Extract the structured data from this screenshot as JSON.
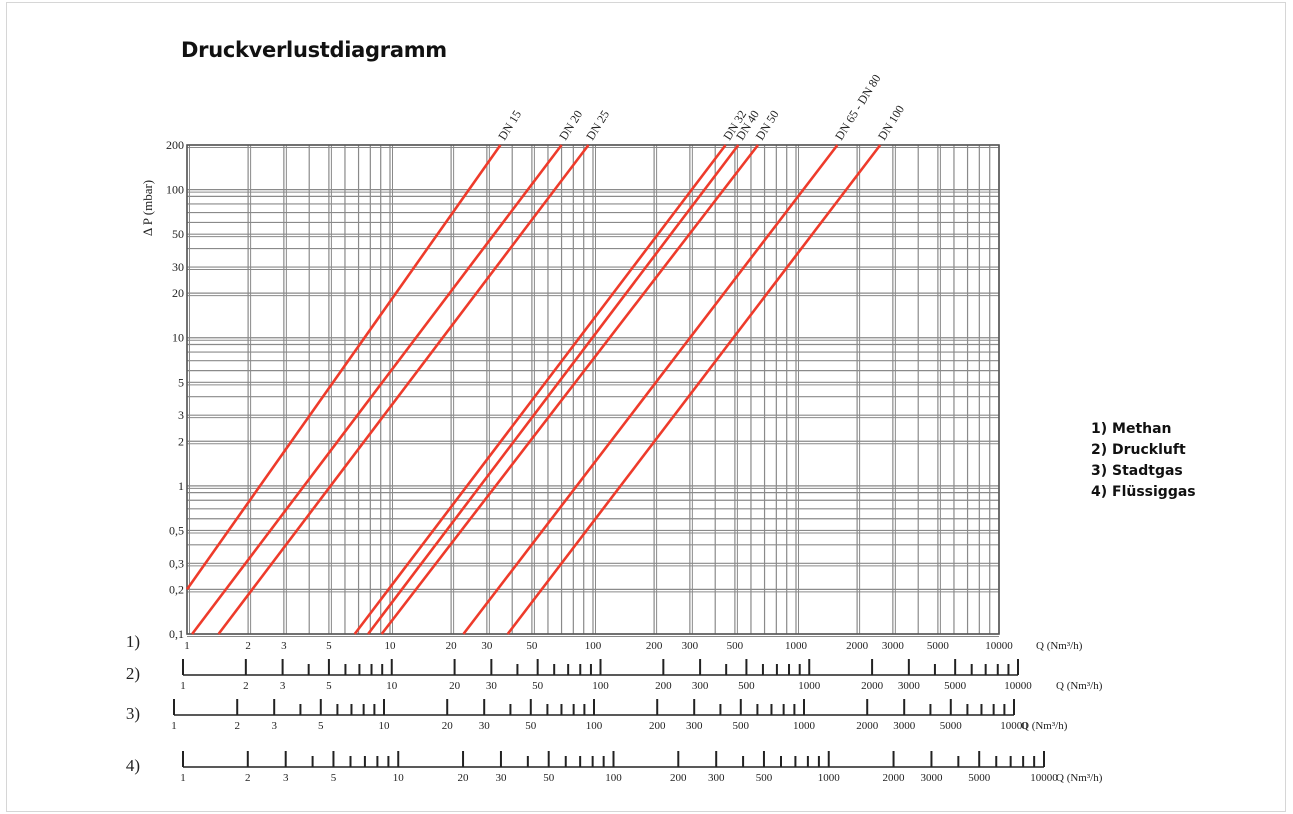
{
  "title": "Druckverlustdiagramm",
  "legend": {
    "items": [
      "1) Methan",
      "2) Druckluft",
      "3) Stadtgas",
      "4) Flüssiggas"
    ]
  },
  "colors": {
    "curve": "#ee3b2b",
    "grid": "#8a8a8a",
    "axis": "#222222"
  },
  "chart_data": {
    "type": "line",
    "title": "Druckverlustdiagramm",
    "xscale": "log",
    "yscale": "log",
    "xlim": [
      1,
      10000
    ],
    "ylim": [
      0.1,
      200
    ],
    "ylabel": "Δ P (mbar)",
    "xlabel": "Q (Nm³/h)",
    "grid": true,
    "y_ticks": [
      {
        "v": 0.1,
        "label": "0,1"
      },
      {
        "v": 0.2,
        "label": "0,2"
      },
      {
        "v": 0.3,
        "label": "0,3"
      },
      {
        "v": 0.5,
        "label": "0,5"
      },
      {
        "v": 1,
        "label": "1"
      },
      {
        "v": 2,
        "label": "2"
      },
      {
        "v": 3,
        "label": "3"
      },
      {
        "v": 5,
        "label": "5"
      },
      {
        "v": 10,
        "label": "10"
      },
      {
        "v": 20,
        "label": "20"
      },
      {
        "v": 30,
        "label": "30"
      },
      {
        "v": 50,
        "label": "50"
      },
      {
        "v": 100,
        "label": "100"
      },
      {
        "v": 200,
        "label": "200"
      }
    ],
    "x_ticks": [
      1,
      2,
      3,
      5,
      10,
      20,
      30,
      50,
      100,
      200,
      300,
      500,
      1000,
      2000,
      3000,
      5000,
      10000
    ],
    "series": [
      {
        "name": "DN 15",
        "points": [
          [
            1,
            0.2
          ],
          [
            35,
            200
          ]
        ]
      },
      {
        "name": "DN 20",
        "points": [
          [
            1.06,
            0.1
          ],
          [
            70,
            200
          ]
        ]
      },
      {
        "name": "DN 25",
        "points": [
          [
            1.43,
            0.1
          ],
          [
            95,
            200
          ]
        ]
      },
      {
        "name": "DN 32",
        "points": [
          [
            6.7,
            0.1
          ],
          [
            450,
            200
          ]
        ]
      },
      {
        "name": "DN 40",
        "points": [
          [
            7.8,
            0.1
          ],
          [
            520,
            200
          ]
        ]
      },
      {
        "name": "DN 50",
        "points": [
          [
            9.1,
            0.1
          ],
          [
            650,
            200
          ]
        ]
      },
      {
        "name": "DN 65 - DN 80",
        "points": [
          [
            23,
            0.1
          ],
          [
            1600,
            200
          ]
        ]
      },
      {
        "name": "DN 100",
        "points": [
          [
            38,
            0.1
          ],
          [
            2600,
            200
          ]
        ]
      }
    ],
    "scales": [
      {
        "id": "1)",
        "gas": "Methan",
        "unit": "Q (Nm³/h)",
        "labels": [
          {
            "v": 1,
            "t": "1"
          },
          {
            "v": 2,
            "t": "2"
          },
          {
            "v": 3,
            "t": "3"
          },
          {
            "v": 5,
            "t": "5"
          },
          {
            "v": 10,
            "t": "10"
          },
          {
            "v": 20,
            "t": "20"
          },
          {
            "v": 30,
            "t": "30"
          },
          {
            "v": 50,
            "t": "50"
          },
          {
            "v": 100,
            "t": "100"
          },
          {
            "v": 200,
            "t": "200"
          },
          {
            "v": 300,
            "t": "300"
          },
          {
            "v": 500,
            "t": "500"
          },
          {
            "v": 1000,
            "t": "1000"
          },
          {
            "v": 2000,
            "t": "2000"
          },
          {
            "v": 3000,
            "t": "3000"
          },
          {
            "v": 5000,
            "t": "5000"
          },
          {
            "v": 10000,
            "t": "10000"
          }
        ]
      },
      {
        "id": "2)",
        "gas": "Druckluft",
        "unit": "Q (Nm³/h)",
        "labels": [
          {
            "v": 1,
            "t": "1"
          },
          {
            "v": 2,
            "t": "2"
          },
          {
            "v": 3,
            "t": "3"
          },
          {
            "v": 5,
            "t": "5"
          },
          {
            "v": 10,
            "t": "10"
          },
          {
            "v": 20,
            "t": "20"
          },
          {
            "v": 30,
            "t": "30"
          },
          {
            "v": 50,
            "t": "50"
          },
          {
            "v": 100,
            "t": "100"
          },
          {
            "v": 200,
            "t": "200"
          },
          {
            "v": 300,
            "t": "300"
          },
          {
            "v": 500,
            "t": "500"
          },
          {
            "v": 1000,
            "t": "1000"
          },
          {
            "v": 2000,
            "t": "2000"
          },
          {
            "v": 3000,
            "t": "3000"
          },
          {
            "v": 5000,
            "t": "5000"
          },
          {
            "v": 10000,
            "t": "10000"
          }
        ]
      },
      {
        "id": "3)",
        "gas": "Stadtgas",
        "unit": "Q (Nm³/h)",
        "labels": [
          {
            "v": 1,
            "t": "1"
          },
          {
            "v": 2,
            "t": "2"
          },
          {
            "v": 3,
            "t": "3"
          },
          {
            "v": 5,
            "t": "5"
          },
          {
            "v": 10,
            "t": "10"
          },
          {
            "v": 20,
            "t": "20"
          },
          {
            "v": 30,
            "t": "30"
          },
          {
            "v": 50,
            "t": "50"
          },
          {
            "v": 100,
            "t": "100"
          },
          {
            "v": 200,
            "t": "200"
          },
          {
            "v": 300,
            "t": "300"
          },
          {
            "v": 500,
            "t": "500"
          },
          {
            "v": 1000,
            "t": "1000"
          },
          {
            "v": 2000,
            "t": "2000"
          },
          {
            "v": 3000,
            "t": "3000"
          },
          {
            "v": 5000,
            "t": "5000"
          },
          {
            "v": 10000,
            "t": "10000"
          }
        ]
      },
      {
        "id": "4)",
        "gas": "Flüssiggas",
        "unit": "Q (Nm³/h)",
        "labels": [
          {
            "v": 1,
            "t": "1"
          },
          {
            "v": 2,
            "t": "2"
          },
          {
            "v": 3,
            "t": "3"
          },
          {
            "v": 5,
            "t": "5"
          },
          {
            "v": 10,
            "t": "10"
          },
          {
            "v": 20,
            "t": "20"
          },
          {
            "v": 30,
            "t": "30"
          },
          {
            "v": 50,
            "t": "50"
          },
          {
            "v": 100,
            "t": "100"
          },
          {
            "v": 200,
            "t": "200"
          },
          {
            "v": 300,
            "t": "300"
          },
          {
            "v": 500,
            "t": "500"
          },
          {
            "v": 1000,
            "t": "1000"
          },
          {
            "v": 2000,
            "t": "2000"
          },
          {
            "v": 3000,
            "t": "3000"
          },
          {
            "v": 5000,
            "t": "5000"
          },
          {
            "v": 10000,
            "t": "10000"
          }
        ]
      }
    ]
  }
}
